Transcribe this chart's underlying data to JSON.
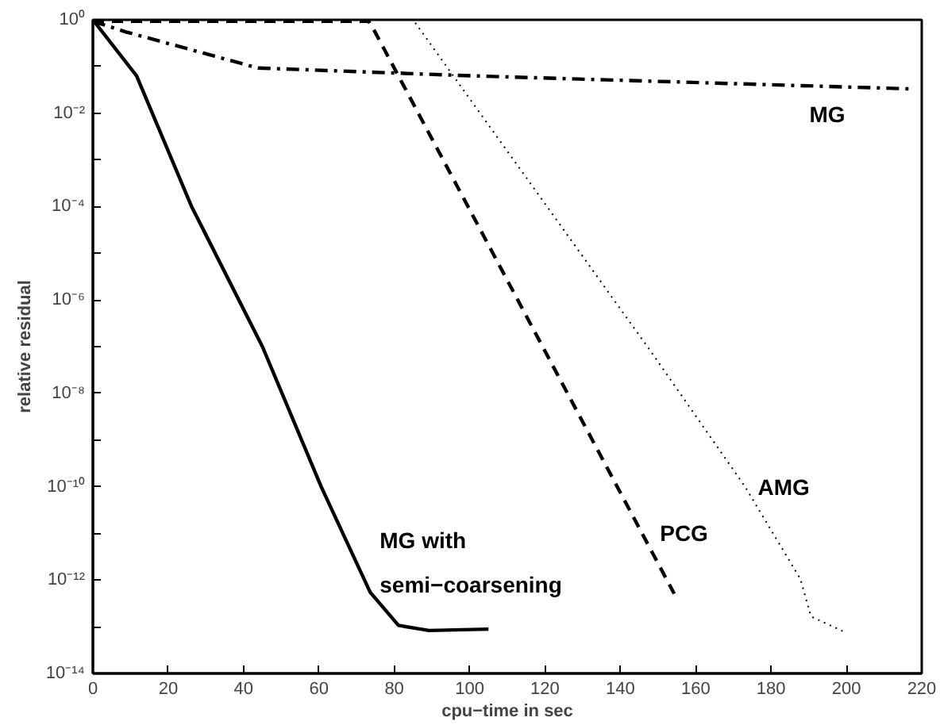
{
  "chart_data": {
    "type": "line",
    "xlabel": "cpu−time in sec",
    "ylabel": "relative residual",
    "log": "y",
    "grid": false,
    "marker": "none",
    "xlim": [
      0,
      220
    ],
    "xticks": [
      0,
      20,
      40,
      60,
      80,
      100,
      120,
      140,
      160,
      180,
      200,
      220
    ],
    "ylim": [
      1e-14,
      1
    ],
    "yticks": [
      {
        "value": 1e-14,
        "label": "10⁻¹⁴"
      },
      {
        "value": 1e-13,
        "label": null
      },
      {
        "value": 1e-12,
        "label": "10⁻¹²"
      },
      {
        "value": 1e-11,
        "label": null
      },
      {
        "value": 1e-10,
        "label": "10⁻¹⁰"
      },
      {
        "value": 1e-09,
        "label": null
      },
      {
        "value": 1e-08,
        "label": "10⁻⁸"
      },
      {
        "value": 1e-07,
        "label": null
      },
      {
        "value": 1e-06,
        "label": "10⁻⁶"
      },
      {
        "value": 1e-05,
        "label": null
      },
      {
        "value": 0.0001,
        "label": "10⁻⁴"
      },
      {
        "value": 0.001,
        "label": null
      },
      {
        "value": 0.01,
        "label": "10⁻²"
      },
      {
        "value": 0.1,
        "label": null
      },
      {
        "value": 1,
        "label": "10⁰"
      }
    ],
    "series": [
      {
        "name": "MG with\nsemi−coarsening",
        "color": "#000000",
        "line_style": "solid",
        "x": [
          0,
          11.6,
          26.2,
          45,
          60.6,
          73.6,
          81.1,
          89.2,
          105
        ],
        "values": [
          1,
          0.063,
          0.0001,
          1e-07,
          1e-10,
          5.5e-13,
          1.07e-13,
          8.3e-14,
          8.9e-14
        ]
      },
      {
        "name": "PCG",
        "color": "#000000",
        "line_style": "dashed",
        "x": [
          0,
          73.2,
          74.5,
          154.3
        ],
        "values": [
          0.93,
          0.93,
          0.63,
          5.1e-13
        ]
      },
      {
        "name": "AMG",
        "color": "#000000",
        "line_style": "dotted",
        "x": [
          0,
          85,
          148,
          173.1,
          187.8,
          190.6,
          199.7
        ],
        "values": [
          1,
          1,
          8.1e-08,
          1e-10,
          1.05e-12,
          1.66e-13,
          7.6e-14
        ]
      },
      {
        "name": "MG",
        "color": "#000000",
        "line_style": "dashdot",
        "x": [
          0,
          8.8,
          43.8,
          101,
          218
        ],
        "values": [
          0.93,
          0.55,
          0.093,
          0.063,
          0.033
        ]
      }
    ]
  }
}
